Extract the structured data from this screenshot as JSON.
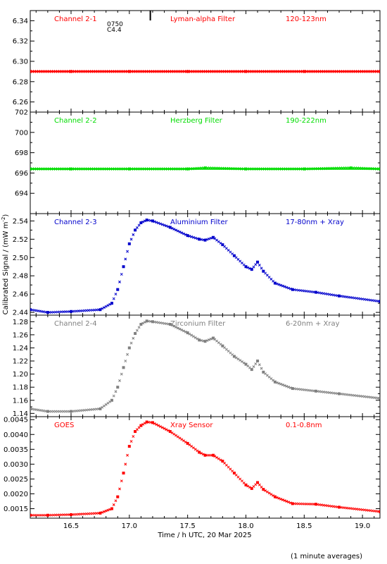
{
  "figure": {
    "ylabel": "Calibrated Signal / (mW m",
    "ylabel_sup": "-2",
    "ylabel_close": ")",
    "xlabel": "Time / h UTC, 20 Mar 2025",
    "footnote": "(1 minute averages)",
    "event_marker": {
      "time": 17.18,
      "class_label": "C4.4",
      "time_label": "0750"
    },
    "x_ticks": [
      "16.5",
      "17.0",
      "17.5",
      "18.0",
      "18.5",
      "19.0"
    ]
  },
  "chart_data": [
    {
      "type": "scatter",
      "channel": "Channel 2-1",
      "filter": "Lyman-alpha Filter",
      "band": "120-123nm",
      "color": "#ff0000",
      "xlim": [
        16.15,
        19.15
      ],
      "ylim": [
        6.25,
        6.35
      ],
      "yticks": [
        "6.26",
        "6.28",
        "6.30",
        "6.32",
        "6.34"
      ],
      "x": [
        16.15,
        16.5,
        17.0,
        17.5,
        18.0,
        18.5,
        19.15
      ],
      "y": [
        6.29,
        6.29,
        6.29,
        6.29,
        6.29,
        6.29,
        6.29
      ]
    },
    {
      "type": "scatter",
      "channel": "Channel 2-2",
      "filter": "Herzberg Filter",
      "band": "190-222nm",
      "color": "#00dd00",
      "xlim": [
        16.15,
        19.15
      ],
      "ylim": [
        692.0,
        702.0
      ],
      "yticks": [
        "694",
        "696",
        "698",
        "700",
        "702"
      ],
      "x": [
        16.15,
        16.5,
        17.0,
        17.5,
        17.65,
        18.0,
        18.5,
        18.9,
        19.15
      ],
      "y": [
        696.4,
        696.4,
        696.4,
        696.4,
        696.5,
        696.4,
        696.4,
        696.5,
        696.4
      ]
    },
    {
      "type": "scatter",
      "channel": "Channel 2-3",
      "filter": "Aluminium Filter",
      "band": "17-80nm + Xray",
      "color": "#0000cc",
      "xlim": [
        16.15,
        19.15
      ],
      "ylim": [
        2.437,
        2.548
      ],
      "yticks": [
        "2.44",
        "2.46",
        "2.48",
        "2.50",
        "2.52",
        "2.54"
      ],
      "x": [
        16.15,
        16.3,
        16.5,
        16.75,
        16.85,
        16.9,
        16.95,
        17.0,
        17.05,
        17.1,
        17.15,
        17.2,
        17.35,
        17.5,
        17.6,
        17.65,
        17.72,
        17.8,
        17.9,
        18.0,
        18.05,
        18.1,
        18.15,
        18.25,
        18.4,
        18.6,
        18.8,
        19.15
      ],
      "y": [
        2.443,
        2.44,
        2.441,
        2.443,
        2.45,
        2.465,
        2.49,
        2.515,
        2.53,
        2.538,
        2.541,
        2.54,
        2.533,
        2.524,
        2.52,
        2.519,
        2.522,
        2.514,
        2.502,
        2.49,
        2.487,
        2.495,
        2.485,
        2.472,
        2.465,
        2.462,
        2.458,
        2.452
      ]
    },
    {
      "type": "scatter",
      "channel": "Channel 2-4",
      "filter": "Zirconium Filter",
      "band": "6-20nm + Xray",
      "color": "#808080",
      "xlim": [
        16.15,
        19.15
      ],
      "ylim": [
        1.135,
        1.29
      ],
      "yticks": [
        "1.14",
        "1.16",
        "1.18",
        "1.20",
        "1.22",
        "1.24",
        "1.26",
        "1.28"
      ],
      "x": [
        16.15,
        16.3,
        16.5,
        16.75,
        16.85,
        16.9,
        16.95,
        17.0,
        17.05,
        17.1,
        17.15,
        17.2,
        17.35,
        17.5,
        17.6,
        17.65,
        17.72,
        17.8,
        17.9,
        18.0,
        18.05,
        18.1,
        18.15,
        18.25,
        18.4,
        18.6,
        18.8,
        19.15
      ],
      "y": [
        1.147,
        1.143,
        1.143,
        1.147,
        1.16,
        1.18,
        1.21,
        1.24,
        1.262,
        1.276,
        1.281,
        1.28,
        1.276,
        1.263,
        1.252,
        1.25,
        1.255,
        1.243,
        1.227,
        1.215,
        1.207,
        1.22,
        1.203,
        1.188,
        1.178,
        1.174,
        1.17,
        1.163
      ]
    },
    {
      "type": "scatter",
      "channel": "GOES",
      "filter": "Xray Sensor",
      "band": "0.1-0.8nm",
      "color": "#ff0000",
      "xlim": [
        16.15,
        19.15
      ],
      "ylim": [
        0.00118,
        0.0046
      ],
      "yticks": [
        "0.0015",
        "0.0020",
        "0.0025",
        "0.0030",
        "0.0035",
        "0.0040",
        "0.0045"
      ],
      "x": [
        16.15,
        16.3,
        16.5,
        16.75,
        16.85,
        16.9,
        16.95,
        17.0,
        17.05,
        17.1,
        17.15,
        17.2,
        17.35,
        17.5,
        17.6,
        17.65,
        17.72,
        17.8,
        17.9,
        18.0,
        18.05,
        18.1,
        18.15,
        18.25,
        18.4,
        18.6,
        18.8,
        19.15
      ],
      "y": [
        0.00128,
        0.00128,
        0.0013,
        0.00135,
        0.0015,
        0.0019,
        0.0027,
        0.0036,
        0.0041,
        0.0043,
        0.00442,
        0.0044,
        0.0041,
        0.0037,
        0.0034,
        0.0033,
        0.0033,
        0.0031,
        0.0027,
        0.0023,
        0.00218,
        0.00238,
        0.00215,
        0.0019,
        0.00167,
        0.00165,
        0.00155,
        0.0014
      ]
    }
  ]
}
